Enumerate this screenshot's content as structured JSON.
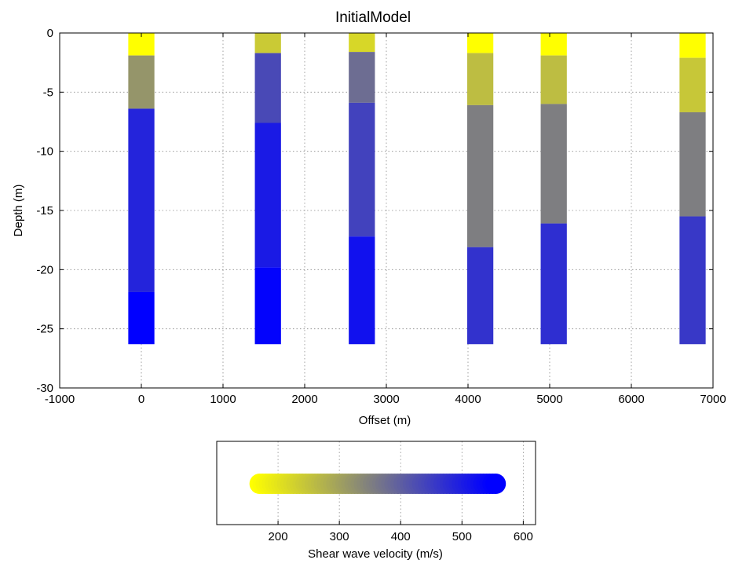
{
  "chart_data": [
    {
      "type": "heatmap",
      "title": "InitialModel",
      "xlabel": "Offset (m)",
      "ylabel": "Depth (m)",
      "xlim": [
        -1000,
        7000
      ],
      "ylim": [
        -30,
        0
      ],
      "x_ticks": [
        -1000,
        0,
        1000,
        2000,
        3000,
        4000,
        5000,
        6000,
        7000
      ],
      "y_ticks": [
        0,
        -5,
        -10,
        -15,
        -20,
        -25,
        -30
      ],
      "grid": true,
      "column_width_m": 320,
      "columns": [
        {
          "offset": 0,
          "layers": [
            {
              "top": 0,
              "bottom": -1.9,
              "velocity": 170
            },
            {
              "top": -1.9,
              "bottom": -6.4,
              "velocity": 330
            },
            {
              "top": -6.4,
              "bottom": -21.9,
              "velocity": 500
            },
            {
              "top": -21.9,
              "bottom": -26.3,
              "velocity": 555
            }
          ]
        },
        {
          "offset": 1550,
          "layers": [
            {
              "top": 0,
              "bottom": -1.7,
              "velocity": 250
            },
            {
              "top": -1.7,
              "bottom": -7.6,
              "velocity": 445
            },
            {
              "top": -7.6,
              "bottom": -19.8,
              "velocity": 515
            },
            {
              "top": -19.8,
              "bottom": -26.3,
              "velocity": 550
            }
          ]
        },
        {
          "offset": 2700,
          "layers": [
            {
              "top": 0,
              "bottom": -1.6,
              "velocity": 230
            },
            {
              "top": -1.6,
              "bottom": -5.9,
              "velocity": 390
            },
            {
              "top": -5.9,
              "bottom": -17.2,
              "velocity": 455
            },
            {
              "top": -17.2,
              "bottom": -26.3,
              "velocity": 530
            }
          ]
        },
        {
          "offset": 4150,
          "layers": [
            {
              "top": 0,
              "bottom": -1.7,
              "velocity": 170
            },
            {
              "top": -1.7,
              "bottom": -6.1,
              "velocity": 270
            },
            {
              "top": -6.1,
              "bottom": -18.1,
              "velocity": 365
            },
            {
              "top": -18.1,
              "bottom": -26.3,
              "velocity": 480
            }
          ]
        },
        {
          "offset": 5050,
          "layers": [
            {
              "top": 0,
              "bottom": -1.9,
              "velocity": 170
            },
            {
              "top": -1.9,
              "bottom": -6.0,
              "velocity": 270
            },
            {
              "top": -6.0,
              "bottom": -16.1,
              "velocity": 365
            },
            {
              "top": -16.1,
              "bottom": -26.3,
              "velocity": 485
            }
          ]
        },
        {
          "offset": 6750,
          "layers": [
            {
              "top": 0,
              "bottom": -2.1,
              "velocity": 170
            },
            {
              "top": -2.1,
              "bottom": -6.7,
              "velocity": 255
            },
            {
              "top": -6.7,
              "bottom": -15.5,
              "velocity": 365
            },
            {
              "top": -15.5,
              "bottom": -26.3,
              "velocity": 470
            }
          ]
        }
      ]
    },
    {
      "type": "scatter",
      "title": "",
      "xlabel": "Shear wave velocity (m/s)",
      "ylabel": "",
      "xlim": [
        100,
        620
      ],
      "x_ticks": [
        200,
        300,
        400,
        500,
        600
      ],
      "grid": true,
      "legend_position": "bottom",
      "colorscale": {
        "min": 170,
        "max": 555,
        "start_color": "#ffff00",
        "end_color": "#0000ff",
        "step": 5
      }
    }
  ]
}
